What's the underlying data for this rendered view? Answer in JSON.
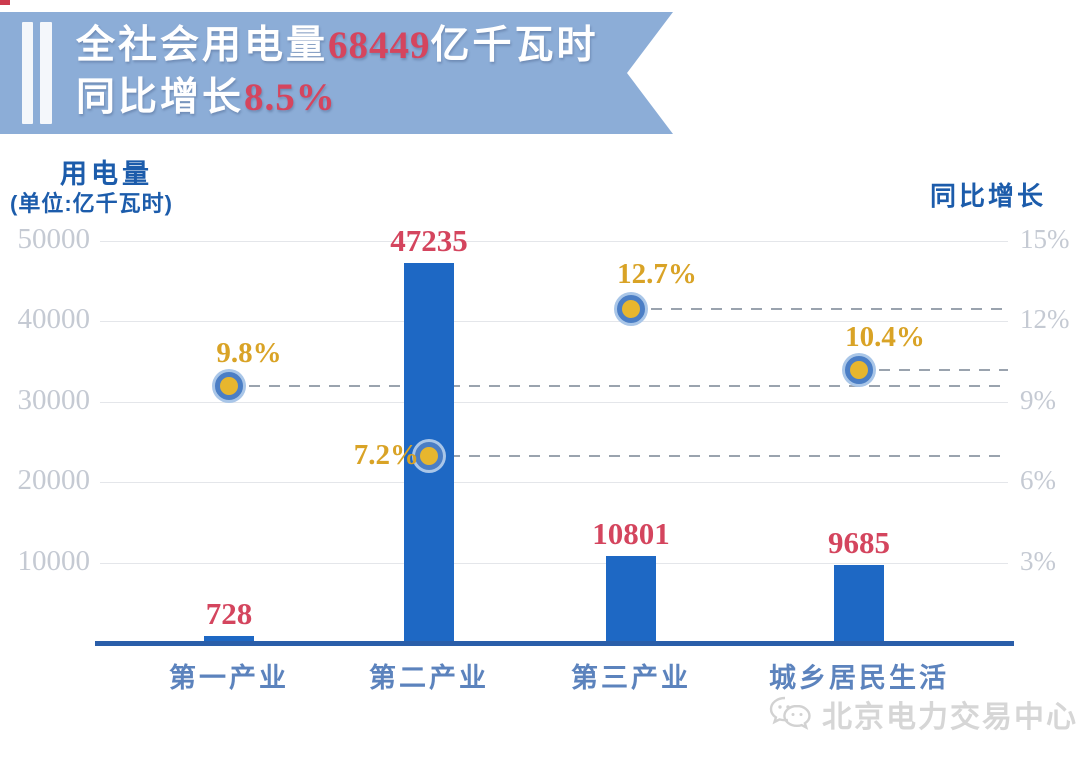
{
  "banner": {
    "line1_prefix": "全社会用电量",
    "line1_value": "68449",
    "line1_suffix": "亿千瓦时",
    "line2_prefix": "同比增长",
    "line2_value": "8.5%"
  },
  "left_axis_title": "用电量",
  "left_axis_unit": "(单位:亿千瓦时)",
  "right_axis_title": "同比增长",
  "watermark": "北京电力交易中心",
  "colors": {
    "banner_bg": "#8cadd7",
    "bar_blue": "#1e68c4",
    "baseline_blue": "#2a5ea9",
    "value_red": "#d4455e",
    "growth_gold": "#d9a326",
    "marker_fill": "#e7b62e",
    "marker_ring": "#4b7ec5",
    "tick_gray": "#c5cad3",
    "axis_title_blue": "#1c5cab",
    "category_blue": "#5c83bd"
  },
  "chart_data": {
    "type": "bar",
    "title": "全社会用电量68449亿千瓦时 同比增长8.5%",
    "categories": [
      "第一产业",
      "第二产业",
      "第三产业",
      "城乡居民生活"
    ],
    "series": [
      {
        "name": "用电量",
        "type": "bar",
        "values": [
          728,
          47235,
          10801,
          9685
        ],
        "labels": [
          "728",
          "47235",
          "10801",
          "9685"
        ]
      },
      {
        "name": "同比增长",
        "type": "scatter",
        "values": [
          9.8,
          7.2,
          12.7,
          10.4
        ],
        "labels": [
          "9.8%",
          "7.2%",
          "12.7%",
          "10.4%"
        ]
      }
    ],
    "left_axis": {
      "label": "用电量",
      "unit": "亿千瓦时",
      "ticks": [
        50000,
        40000,
        30000,
        20000,
        10000
      ],
      "range": [
        0,
        50000
      ]
    },
    "right_axis": {
      "label": "同比增长",
      "ticks": [
        "15%",
        "12%",
        "9%",
        "6%",
        "3%"
      ],
      "tick_values": [
        15,
        12,
        9,
        6,
        3
      ],
      "range": [
        0,
        15
      ]
    },
    "grid": true,
    "legend_position": "none",
    "annotations": "dashed gray leader lines extend right from each growth marker to the chart edge"
  }
}
